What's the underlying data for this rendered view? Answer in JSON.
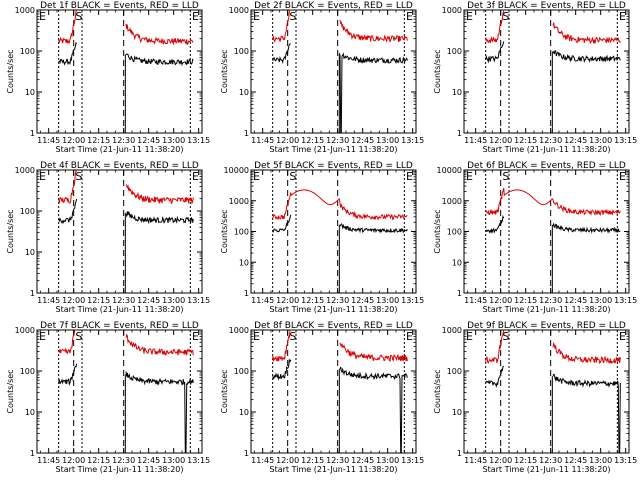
{
  "colors": {
    "events": "#000000",
    "lld": "#dd0000",
    "background": "#ffffff"
  },
  "chart_data": [
    {
      "type": "line",
      "title": "Det 1f BLACK = Events, RED = LLD",
      "xlabel": "Start Time (21-Jun-11 11:38:20)",
      "ylabel": "Counts/sec",
      "yscale": "log",
      "ylim": [
        1,
        1000
      ],
      "ytick_labels": [
        "1",
        "10",
        "100",
        "1000"
      ],
      "xlim": [
        "11:38",
        "13:17"
      ],
      "xtick_labels": [
        "11:45",
        "12:00",
        "12:15",
        "12:30",
        "12:45",
        "13:00",
        "13:15"
      ],
      "markers": [
        "E",
        "S",
        "E"
      ],
      "lld_level": 175,
      "events_level": 55,
      "dropouts": []
    },
    {
      "type": "line",
      "title": "Det 2f BLACK = Events, RED = LLD",
      "xlabel": "Start Time (21-Jun-11 11:38:20)",
      "ylabel": "Counts/sec",
      "yscale": "log",
      "ylim": [
        1,
        1000
      ],
      "ytick_labels": [
        "1",
        "10",
        "100",
        "1000"
      ],
      "xlim": [
        "11:38",
        "13:17"
      ],
      "xtick_labels": [
        "11:45",
        "12:00",
        "12:15",
        "12:30",
        "12:45",
        "13:00",
        "13:15"
      ],
      "markers": [
        "E",
        "S",
        "E"
      ],
      "lld_level": 200,
      "events_level": 60,
      "dropouts": [
        "12:32"
      ]
    },
    {
      "type": "line",
      "title": "Det 3f BLACK = Events, RED = LLD",
      "xlabel": "Start Time (21-Jun-11 11:38:20)",
      "ylabel": "Counts/sec",
      "yscale": "log",
      "ylim": [
        1,
        1000
      ],
      "ytick_labels": [
        "1",
        "10",
        "100",
        "1000"
      ],
      "xlim": [
        "11:38",
        "13:17"
      ],
      "xtick_labels": [
        "11:45",
        "12:00",
        "12:15",
        "12:30",
        "12:45",
        "13:00",
        "13:15"
      ],
      "markers": [
        "E",
        "S",
        "E"
      ],
      "lld_level": 185,
      "events_level": 65,
      "dropouts": []
    },
    {
      "type": "line",
      "title": "Det 4f BLACK = Events, RED = LLD",
      "xlabel": "Start Time (21-Jun-11 11:38:20)",
      "ylabel": "Counts/sec",
      "yscale": "log",
      "ylim": [
        1,
        1000
      ],
      "ytick_labels": [
        "1",
        "10",
        "100",
        "1000"
      ],
      "xlim": [
        "11:38",
        "13:17"
      ],
      "xtick_labels": [
        "11:45",
        "12:00",
        "12:15",
        "12:30",
        "12:45",
        "13:00",
        "13:15"
      ],
      "markers": [
        "E",
        "S",
        "E"
      ],
      "lld_level": 185,
      "events_level": 60,
      "dropouts": []
    },
    {
      "type": "line",
      "title": "Det 5f BLACK = Events, RED = LLD",
      "xlabel": "Start Time (21-Jun-11 11:38:20)",
      "ylabel": "Counts/sec",
      "yscale": "log",
      "ylim": [
        1,
        10000
      ],
      "ytick_labels": [
        "1",
        "10",
        "100",
        "1000",
        "10000"
      ],
      "xlim": [
        "11:38",
        "13:17"
      ],
      "xtick_labels": [
        "11:45",
        "12:00",
        "12:15",
        "12:30",
        "12:45",
        "13:00",
        "13:15"
      ],
      "markers": [
        "E",
        "S",
        "E"
      ],
      "lld_level": 300,
      "events_level": 110,
      "dropouts": []
    },
    {
      "type": "line",
      "title": "Det 6f BLACK = Events, RED = LLD",
      "xlabel": "Start Time (21-Jun-11 11:38:20)",
      "ylabel": "Counts/sec",
      "yscale": "log",
      "ylim": [
        1,
        10000
      ],
      "ytick_labels": [
        "1",
        "10",
        "100",
        "1000",
        "10000"
      ],
      "xlim": [
        "11:38",
        "13:17"
      ],
      "xtick_labels": [
        "11:45",
        "12:00",
        "12:15",
        "12:30",
        "12:45",
        "13:00",
        "13:15"
      ],
      "markers": [
        "E",
        "S",
        "E"
      ],
      "lld_level": 420,
      "events_level": 110,
      "dropouts": []
    },
    {
      "type": "line",
      "title": "Det 7f BLACK = Events, RED = LLD",
      "xlabel": "Start Time (21-Jun-11 11:38:20)",
      "ylabel": "Counts/sec",
      "yscale": "log",
      "ylim": [
        1,
        1000
      ],
      "ytick_labels": [
        "1",
        "10",
        "100",
        "1000"
      ],
      "xlim": [
        "11:38",
        "13:17"
      ],
      "xtick_labels": [
        "11:45",
        "12:00",
        "12:15",
        "12:30",
        "12:45",
        "13:00",
        "13:15"
      ],
      "markers": [
        "E",
        "S",
        "E"
      ],
      "lld_level": 290,
      "events_level": 55,
      "dropouts": [
        "13:07"
      ]
    },
    {
      "type": "line",
      "title": "Det 8f BLACK = Events, RED = LLD",
      "xlabel": "Start Time (21-Jun-11 11:38:20)",
      "ylabel": "Counts/sec",
      "yscale": "log",
      "ylim": [
        1,
        1000
      ],
      "ytick_labels": [
        "1",
        "10",
        "100",
        "1000"
      ],
      "xlim": [
        "11:38",
        "13:17"
      ],
      "xtick_labels": [
        "11:45",
        "12:00",
        "12:15",
        "12:30",
        "12:45",
        "13:00",
        "13:15"
      ],
      "markers": [
        "E",
        "S",
        "E"
      ],
      "lld_level": 210,
      "events_level": 75,
      "dropouts": [
        "13:08"
      ]
    },
    {
      "type": "line",
      "title": "Det 9f BLACK = Events, RED = LLD",
      "xlabel": "Start Time (21-Jun-11 11:38:20)",
      "ylabel": "Counts/sec",
      "yscale": "log",
      "ylim": [
        1,
        1000
      ],
      "ytick_labels": [
        "1",
        "10",
        "100",
        "1000"
      ],
      "xlim": [
        "11:38",
        "13:17"
      ],
      "xtick_labels": [
        "11:45",
        "12:00",
        "12:15",
        "12:30",
        "12:45",
        "13:00",
        "13:15"
      ],
      "markers": [
        "E",
        "S",
        "E"
      ],
      "lld_level": 185,
      "events_level": 50,
      "dropouts": [
        "13:11"
      ]
    }
  ]
}
